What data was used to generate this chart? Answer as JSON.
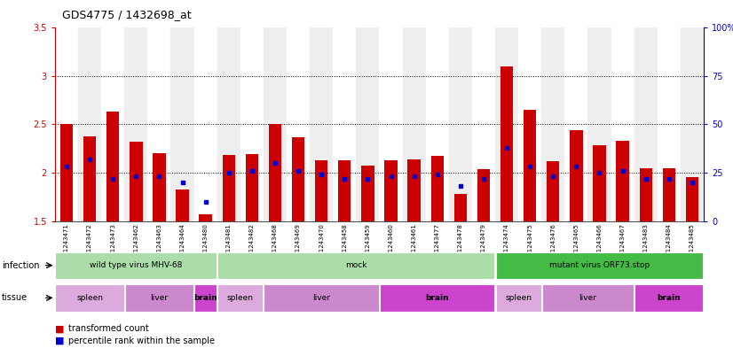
{
  "title": "GDS4775 / 1432698_at",
  "samples": [
    "GSM1243471",
    "GSM1243472",
    "GSM1243473",
    "GSM1243462",
    "GSM1243463",
    "GSM1243464",
    "GSM1243480",
    "GSM1243481",
    "GSM1243482",
    "GSM1243468",
    "GSM1243469",
    "GSM1243470",
    "GSM1243458",
    "GSM1243459",
    "GSM1243460",
    "GSM1243461",
    "GSM1243477",
    "GSM1243478",
    "GSM1243479",
    "GSM1243474",
    "GSM1243475",
    "GSM1243476",
    "GSM1243465",
    "GSM1243466",
    "GSM1243467",
    "GSM1243483",
    "GSM1243484",
    "GSM1243485"
  ],
  "red_values": [
    2.5,
    2.38,
    2.63,
    2.32,
    2.2,
    1.83,
    1.57,
    2.18,
    2.19,
    2.5,
    2.37,
    2.13,
    2.13,
    2.07,
    2.13,
    2.14,
    2.17,
    1.78,
    2.04,
    3.1,
    2.65,
    2.12,
    2.44,
    2.28,
    2.33,
    2.05,
    2.05,
    1.95
  ],
  "blue_percentile": [
    28,
    32,
    22,
    23,
    23,
    20,
    10,
    25,
    26,
    30,
    26,
    24,
    22,
    22,
    23,
    23,
    24,
    18,
    22,
    38,
    28,
    23,
    28,
    25,
    26,
    22,
    22,
    20
  ],
  "ymin": 1.5,
  "ymax": 3.5,
  "red_color": "#CC0000",
  "blue_color": "#0000CC",
  "bar_width": 0.55,
  "inf_groups": [
    {
      "label": "wild type virus MHV-68",
      "start": 0,
      "end": 7,
      "color": "#aaddaa"
    },
    {
      "label": "mock",
      "start": 7,
      "end": 19,
      "color": "#aaddaa"
    },
    {
      "label": "mutant virus ORF73.stop",
      "start": 19,
      "end": 28,
      "color": "#44bb44"
    }
  ],
  "tissue_groups": [
    {
      "label": "spleen",
      "start": 0,
      "end": 3,
      "color": "#ddaadd"
    },
    {
      "label": "liver",
      "start": 3,
      "end": 6,
      "color": "#cc88cc"
    },
    {
      "label": "brain",
      "start": 6,
      "end": 7,
      "color": "#cc44cc"
    },
    {
      "label": "spleen",
      "start": 7,
      "end": 9,
      "color": "#ddaadd"
    },
    {
      "label": "liver",
      "start": 9,
      "end": 14,
      "color": "#cc88cc"
    },
    {
      "label": "brain",
      "start": 14,
      "end": 19,
      "color": "#cc44cc"
    },
    {
      "label": "spleen",
      "start": 19,
      "end": 21,
      "color": "#ddaadd"
    },
    {
      "label": "liver",
      "start": 21,
      "end": 25,
      "color": "#cc88cc"
    },
    {
      "label": "brain",
      "start": 25,
      "end": 28,
      "color": "#cc44cc"
    }
  ]
}
